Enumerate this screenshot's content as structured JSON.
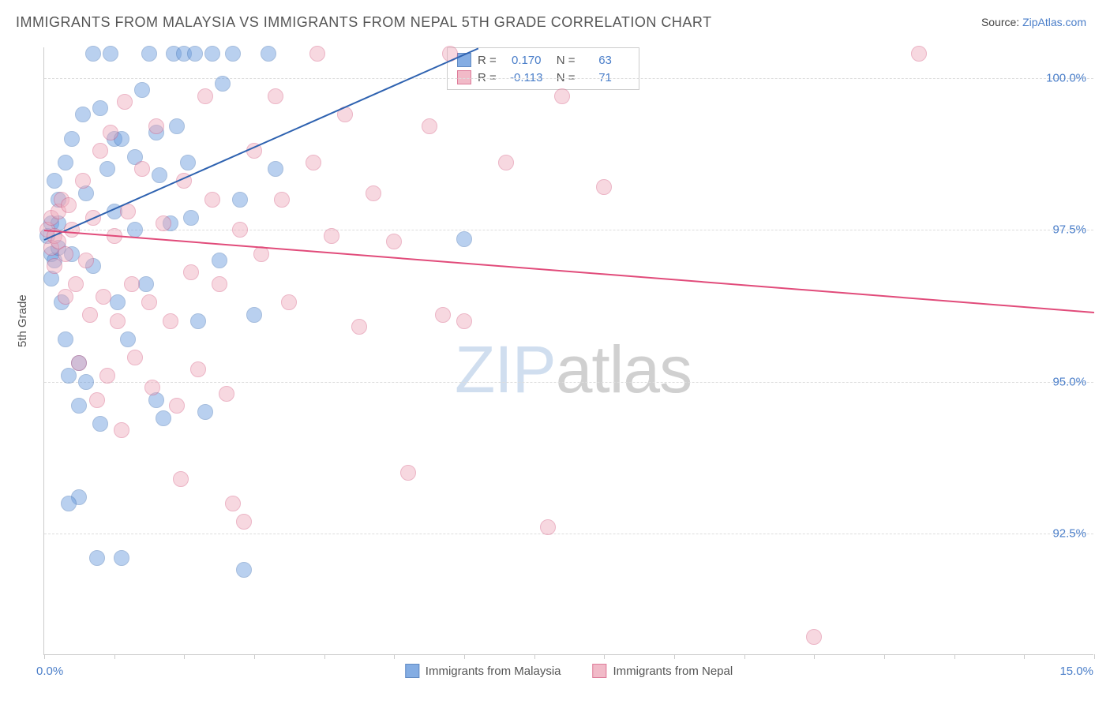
{
  "title": "IMMIGRANTS FROM MALAYSIA VS IMMIGRANTS FROM NEPAL 5TH GRADE CORRELATION CHART",
  "source_label": "Source: ",
  "source_link": "ZipAtlas.com",
  "yaxis_label": "5th Grade",
  "watermark": {
    "part1": "ZIP",
    "part2": "atlas"
  },
  "chart": {
    "type": "scatter",
    "xlim": [
      0.0,
      15.0
    ],
    "ylim": [
      90.5,
      100.5
    ],
    "xlabel_min": "0.0%",
    "xlabel_max": "15.0%",
    "yticks": [
      92.5,
      95.0,
      97.5,
      100.0
    ],
    "ytick_labels": [
      "92.5%",
      "95.0%",
      "97.5%",
      "100.0%"
    ],
    "xtick_positions": [
      0,
      1,
      2,
      3,
      4,
      5,
      6,
      7,
      8,
      9,
      10,
      11,
      12,
      13,
      14,
      15
    ],
    "grid_color": "#dddddd",
    "background_color": "#ffffff",
    "axis_color": "#cccccc",
    "marker_radius": 10,
    "marker_opacity": 0.45,
    "marker_border_opacity": 0.75,
    "series": [
      {
        "name": "Immigrants from Malaysia",
        "color": "#6699dd",
        "border_color": "#3b6fb5",
        "R": "0.170",
        "N": "63",
        "trendline": {
          "x1": 0.0,
          "y1": 97.35,
          "x2": 6.2,
          "y2": 100.5,
          "color": "#2e62b0",
          "width": 2
        },
        "points": [
          [
            0.05,
            97.4
          ],
          [
            0.1,
            97.1
          ],
          [
            0.1,
            97.6
          ],
          [
            0.1,
            96.7
          ],
          [
            0.15,
            98.3
          ],
          [
            0.15,
            97.0
          ],
          [
            0.2,
            98.0
          ],
          [
            0.2,
            97.6
          ],
          [
            0.2,
            97.2
          ],
          [
            0.25,
            96.3
          ],
          [
            0.3,
            98.6
          ],
          [
            0.3,
            95.7
          ],
          [
            0.35,
            95.1
          ],
          [
            0.4,
            99.0
          ],
          [
            0.4,
            97.1
          ],
          [
            0.5,
            94.6
          ],
          [
            0.5,
            93.1
          ],
          [
            0.5,
            95.3
          ],
          [
            0.55,
            99.4
          ],
          [
            0.6,
            98.1
          ],
          [
            0.7,
            100.4
          ],
          [
            0.7,
            96.9
          ],
          [
            0.75,
            92.1
          ],
          [
            0.8,
            99.5
          ],
          [
            0.8,
            94.3
          ],
          [
            0.9,
            98.5
          ],
          [
            0.95,
            100.4
          ],
          [
            1.0,
            97.8
          ],
          [
            1.0,
            99.0
          ],
          [
            1.05,
            96.3
          ],
          [
            1.1,
            92.1
          ],
          [
            1.1,
            99.0
          ],
          [
            1.2,
            95.7
          ],
          [
            1.3,
            98.7
          ],
          [
            1.3,
            97.5
          ],
          [
            1.4,
            99.8
          ],
          [
            1.45,
            96.6
          ],
          [
            1.5,
            100.4
          ],
          [
            1.6,
            99.1
          ],
          [
            1.65,
            98.4
          ],
          [
            1.7,
            94.4
          ],
          [
            1.8,
            97.6
          ],
          [
            1.85,
            100.4
          ],
          [
            1.9,
            99.2
          ],
          [
            2.0,
            100.4
          ],
          [
            2.05,
            98.6
          ],
          [
            2.1,
            97.7
          ],
          [
            2.15,
            100.4
          ],
          [
            2.2,
            96.0
          ],
          [
            2.3,
            94.5
          ],
          [
            2.4,
            100.4
          ],
          [
            2.5,
            97.0
          ],
          [
            2.55,
            99.9
          ],
          [
            2.7,
            100.4
          ],
          [
            2.8,
            98.0
          ],
          [
            2.85,
            91.9
          ],
          [
            3.0,
            96.1
          ],
          [
            3.2,
            100.4
          ],
          [
            3.3,
            98.5
          ],
          [
            6.0,
            97.35
          ],
          [
            0.6,
            95.0
          ],
          [
            1.6,
            94.7
          ],
          [
            0.35,
            93.0
          ]
        ]
      },
      {
        "name": "Immigrants from Nepal",
        "color": "#eeaabb",
        "border_color": "#d65c82",
        "R": "-0.113",
        "N": "71",
        "trendline": {
          "x1": 0.0,
          "y1": 97.5,
          "x2": 15.0,
          "y2": 96.15,
          "color": "#e14b7a",
          "width": 2
        },
        "points": [
          [
            0.05,
            97.5
          ],
          [
            0.1,
            97.7
          ],
          [
            0.1,
            97.2
          ],
          [
            0.15,
            97.4
          ],
          [
            0.15,
            96.9
          ],
          [
            0.2,
            97.8
          ],
          [
            0.2,
            97.3
          ],
          [
            0.25,
            98.0
          ],
          [
            0.3,
            97.1
          ],
          [
            0.3,
            96.4
          ],
          [
            0.35,
            97.9
          ],
          [
            0.4,
            97.5
          ],
          [
            0.45,
            96.6
          ],
          [
            0.5,
            95.3
          ],
          [
            0.55,
            98.3
          ],
          [
            0.6,
            97.0
          ],
          [
            0.65,
            96.1
          ],
          [
            0.7,
            97.7
          ],
          [
            0.75,
            94.7
          ],
          [
            0.8,
            98.8
          ],
          [
            0.85,
            96.4
          ],
          [
            0.9,
            95.1
          ],
          [
            0.95,
            99.1
          ],
          [
            1.0,
            97.4
          ],
          [
            1.05,
            96.0
          ],
          [
            1.1,
            94.2
          ],
          [
            1.15,
            99.6
          ],
          [
            1.2,
            97.8
          ],
          [
            1.25,
            96.6
          ],
          [
            1.3,
            95.4
          ],
          [
            1.4,
            98.5
          ],
          [
            1.5,
            96.3
          ],
          [
            1.55,
            94.9
          ],
          [
            1.6,
            99.2
          ],
          [
            1.7,
            97.6
          ],
          [
            1.8,
            96.0
          ],
          [
            1.9,
            94.6
          ],
          [
            1.95,
            93.4
          ],
          [
            2.0,
            98.3
          ],
          [
            2.1,
            96.8
          ],
          [
            2.2,
            95.2
          ],
          [
            2.3,
            99.7
          ],
          [
            2.4,
            98.0
          ],
          [
            2.5,
            96.6
          ],
          [
            2.6,
            94.8
          ],
          [
            2.7,
            93.0
          ],
          [
            2.8,
            97.5
          ],
          [
            2.85,
            92.7
          ],
          [
            3.0,
            98.8
          ],
          [
            3.1,
            97.1
          ],
          [
            3.3,
            99.7
          ],
          [
            3.4,
            98.0
          ],
          [
            3.5,
            96.3
          ],
          [
            3.85,
            98.6
          ],
          [
            3.9,
            100.4
          ],
          [
            4.1,
            97.4
          ],
          [
            4.3,
            99.4
          ],
          [
            4.5,
            95.9
          ],
          [
            4.7,
            98.1
          ],
          [
            5.0,
            97.3
          ],
          [
            5.2,
            93.5
          ],
          [
            5.5,
            99.2
          ],
          [
            5.7,
            96.1
          ],
          [
            5.8,
            100.4
          ],
          [
            6.0,
            96.0
          ],
          [
            6.6,
            98.6
          ],
          [
            7.2,
            92.6
          ],
          [
            7.4,
            99.7
          ],
          [
            8.0,
            98.2
          ],
          [
            11.0,
            90.8
          ],
          [
            12.5,
            100.4
          ]
        ]
      }
    ]
  },
  "legend_box": {
    "r_label": "R = ",
    "n_label": "N = "
  },
  "bottom_legend": {
    "series1": "Immigrants from Malaysia",
    "series2": "Immigrants from Nepal"
  }
}
